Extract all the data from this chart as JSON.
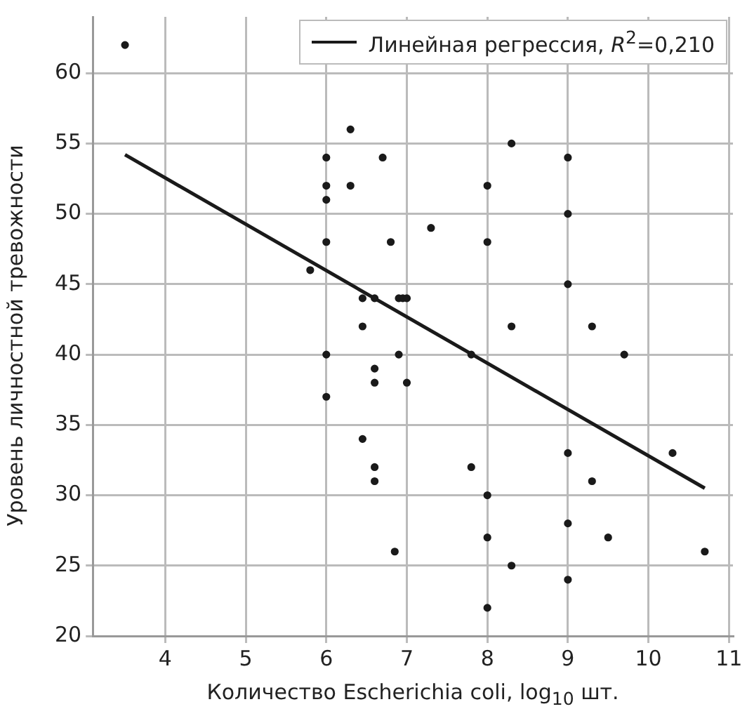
{
  "chart_data": {
    "type": "scatter",
    "xlabel": "Количество Escherichia coli, log$_{10}$ шт.",
    "ylabel": "Уровень личностной тревожности",
    "xlim": [
      3.1,
      11.05
    ],
    "xticks": [
      4,
      5,
      6,
      7,
      8,
      9,
      10,
      11
    ],
    "ylim": [
      20,
      64
    ],
    "yticks": [
      20,
      25,
      30,
      35,
      40,
      45,
      50,
      55,
      60
    ],
    "grid": true,
    "legend": "top right",
    "marker": "circle",
    "series": [
      {
        "color": "#1a1a1a",
        "x": [
          3.5,
          6,
          6,
          6,
          6,
          6,
          6,
          5.8,
          6.3,
          6.3,
          6.7,
          6.8,
          6.45,
          6.6,
          6.9,
          6.95,
          7.0,
          6.45,
          6.6,
          6.6,
          6.9,
          7.0,
          6.45,
          6.6,
          6.6,
          6.85,
          7.3,
          7.8,
          7.8,
          8,
          8,
          8,
          8,
          8,
          8.3,
          8.3,
          8.3,
          9,
          9,
          9,
          9,
          9,
          9,
          9.3,
          9.3,
          9.5,
          9.7,
          10.3,
          10.7
        ],
        "values": [
          62,
          54,
          52,
          51,
          48,
          40,
          37,
          46,
          56,
          52,
          54,
          48,
          44,
          44,
          44,
          44,
          44,
          42,
          39,
          38,
          40,
          38,
          34,
          32,
          31,
          26,
          49,
          40,
          32,
          52,
          48,
          30,
          27,
          22,
          55,
          42,
          25,
          54,
          50,
          45,
          33,
          28,
          24,
          42,
          31,
          27,
          40,
          33,
          26
        ]
      },
      {
        "type": "line",
        "name": "Линейная регрессия, R$^{2}$=0,210",
        "color": "#1a1a1a",
        "marker": "none",
        "line_style": "solid",
        "x": [
          3.5,
          10.7
        ],
        "values": [
          54.2,
          30.5
        ]
      }
    ]
  }
}
